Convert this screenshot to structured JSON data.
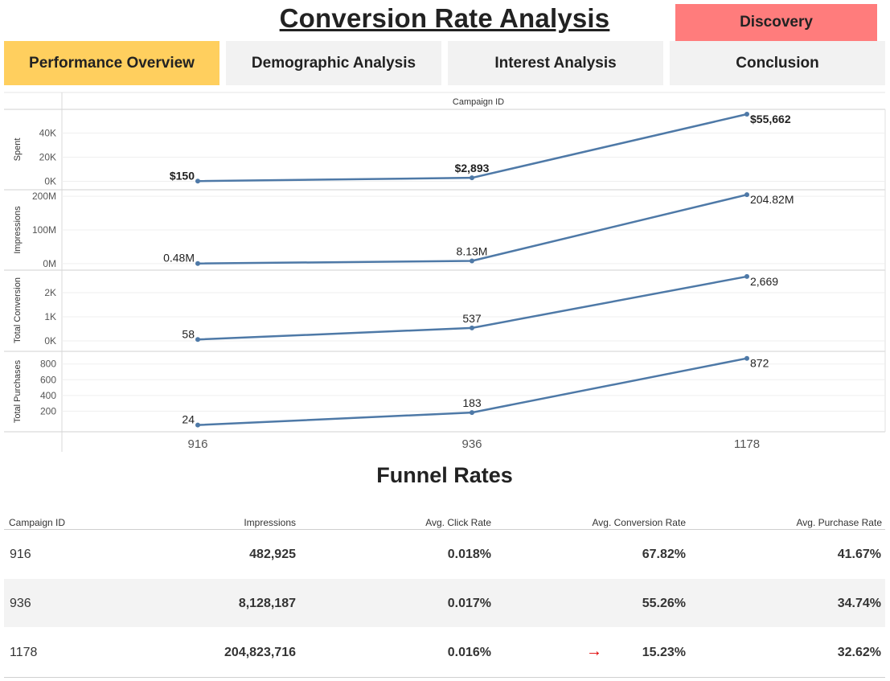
{
  "header": {
    "title": "Conversion Rate Analysis",
    "discovery_label": "Discovery",
    "tabs": [
      {
        "label": "Performance Overview",
        "active": true
      },
      {
        "label": "Demographic Analysis",
        "active": false
      },
      {
        "label": "Interest Analysis",
        "active": false
      },
      {
        "label": "Conclusion",
        "active": false
      }
    ]
  },
  "chart_data": {
    "type": "line",
    "title": "",
    "column_header": "Campaign ID",
    "categories": [
      "916",
      "936",
      "1178"
    ],
    "line_color": "#4e79a7",
    "grid": true,
    "panels": [
      {
        "ylabel": "Spent",
        "ylim": [
          -3000,
          57000
        ],
        "ticks": [
          {
            "v": 0,
            "t": "0K"
          },
          {
            "v": 20000,
            "t": "20K"
          },
          {
            "v": 40000,
            "t": "40K"
          }
        ],
        "values": [
          150,
          2893,
          55662
        ],
        "labels": [
          "$150",
          "$2,893",
          "$55,662"
        ],
        "bold_labels": true
      },
      {
        "ylabel": "Impressions",
        "ylim": [
          -5000000,
          210000000
        ],
        "ticks": [
          {
            "v": 0,
            "t": "0M"
          },
          {
            "v": 100000000,
            "t": "100M"
          },
          {
            "v": 200000000,
            "t": "200M"
          }
        ],
        "values": [
          482925,
          8128187,
          204823716
        ],
        "labels": [
          "0.48M",
          "8.13M",
          "204.82M"
        ],
        "bold_labels": false
      },
      {
        "ylabel": "Total Conversion",
        "ylim": [
          -200,
          2800
        ],
        "ticks": [
          {
            "v": 0,
            "t": "0K"
          },
          {
            "v": 1000,
            "t": "1K"
          },
          {
            "v": 2000,
            "t": "2K"
          }
        ],
        "values": [
          58,
          537,
          2669
        ],
        "labels": [
          "58",
          "537",
          "2,669"
        ],
        "bold_labels": false
      },
      {
        "ylabel": "Total Purchases",
        "ylim": [
          0,
          920
        ],
        "ticks": [
          {
            "v": 200,
            "t": "200"
          },
          {
            "v": 400,
            "t": "400"
          },
          {
            "v": 600,
            "t": "600"
          },
          {
            "v": 800,
            "t": "800"
          }
        ],
        "values": [
          24,
          183,
          872
        ],
        "labels": [
          "24",
          "183",
          "872"
        ],
        "bold_labels": false
      }
    ]
  },
  "funnel": {
    "title": "Funnel Rates",
    "columns": [
      "Campaign ID",
      "Impressions",
      "Avg. Click Rate",
      "Avg. Conversion Rate",
      "Avg. Purchase Rate"
    ],
    "rows": [
      {
        "campaign_id": "916",
        "impressions": "482,925",
        "click_rate": "0.018%",
        "conversion_rate": "67.82%",
        "purchase_rate": "41.67%",
        "flag": ""
      },
      {
        "campaign_id": "936",
        "impressions": "8,128,187",
        "click_rate": "0.017%",
        "conversion_rate": "55.26%",
        "purchase_rate": "34.74%",
        "flag": ""
      },
      {
        "campaign_id": "1178",
        "impressions": "204,823,716",
        "click_rate": "0.016%",
        "conversion_rate": "15.23%",
        "purchase_rate": "32.62%",
        "flag": "→"
      }
    ],
    "arrow_color": "#e00000"
  }
}
